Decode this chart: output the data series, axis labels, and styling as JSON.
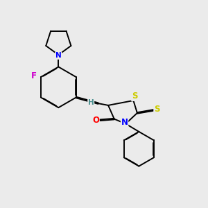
{
  "background_color": "#ebebeb",
  "figsize": [
    3.0,
    3.0
  ],
  "dpi": 100,
  "atom_colors": {
    "S": "#cccc00",
    "N": "#0000ff",
    "O": "#ff0000",
    "F": "#cc00cc",
    "C": "#000000",
    "H": "#4a9090"
  },
  "bond_color": "#000000",
  "bond_width": 1.4,
  "font_size_atom": 8.5,
  "font_size_small": 7.5
}
